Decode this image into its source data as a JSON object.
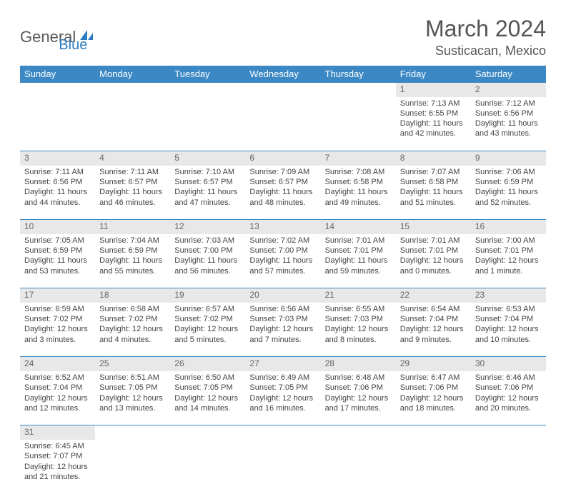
{
  "logo": {
    "text1": "General",
    "text2": "Blue"
  },
  "title": "March 2024",
  "location": "Susticacan, Mexico",
  "colors": {
    "header_bg": "#3b88c4",
    "header_text": "#ffffff",
    "daynum_bg": "#e8e8e8",
    "daynum_text": "#666666",
    "row_border": "#3b88c4",
    "body_text": "#444444",
    "logo_gray": "#5a5a5a",
    "logo_blue": "#2d7bc0",
    "title_text": "#555555"
  },
  "weekdays": [
    "Sunday",
    "Monday",
    "Tuesday",
    "Wednesday",
    "Thursday",
    "Friday",
    "Saturday"
  ],
  "weeks": [
    [
      null,
      null,
      null,
      null,
      null,
      {
        "day": "1",
        "sunrise": "Sunrise: 7:13 AM",
        "sunset": "Sunset: 6:55 PM",
        "daylight": "Daylight: 11 hours and 42 minutes."
      },
      {
        "day": "2",
        "sunrise": "Sunrise: 7:12 AM",
        "sunset": "Sunset: 6:56 PM",
        "daylight": "Daylight: 11 hours and 43 minutes."
      }
    ],
    [
      {
        "day": "3",
        "sunrise": "Sunrise: 7:11 AM",
        "sunset": "Sunset: 6:56 PM",
        "daylight": "Daylight: 11 hours and 44 minutes."
      },
      {
        "day": "4",
        "sunrise": "Sunrise: 7:11 AM",
        "sunset": "Sunset: 6:57 PM",
        "daylight": "Daylight: 11 hours and 46 minutes."
      },
      {
        "day": "5",
        "sunrise": "Sunrise: 7:10 AM",
        "sunset": "Sunset: 6:57 PM",
        "daylight": "Daylight: 11 hours and 47 minutes."
      },
      {
        "day": "6",
        "sunrise": "Sunrise: 7:09 AM",
        "sunset": "Sunset: 6:57 PM",
        "daylight": "Daylight: 11 hours and 48 minutes."
      },
      {
        "day": "7",
        "sunrise": "Sunrise: 7:08 AM",
        "sunset": "Sunset: 6:58 PM",
        "daylight": "Daylight: 11 hours and 49 minutes."
      },
      {
        "day": "8",
        "sunrise": "Sunrise: 7:07 AM",
        "sunset": "Sunset: 6:58 PM",
        "daylight": "Daylight: 11 hours and 51 minutes."
      },
      {
        "day": "9",
        "sunrise": "Sunrise: 7:06 AM",
        "sunset": "Sunset: 6:59 PM",
        "daylight": "Daylight: 11 hours and 52 minutes."
      }
    ],
    [
      {
        "day": "10",
        "sunrise": "Sunrise: 7:05 AM",
        "sunset": "Sunset: 6:59 PM",
        "daylight": "Daylight: 11 hours and 53 minutes."
      },
      {
        "day": "11",
        "sunrise": "Sunrise: 7:04 AM",
        "sunset": "Sunset: 6:59 PM",
        "daylight": "Daylight: 11 hours and 55 minutes."
      },
      {
        "day": "12",
        "sunrise": "Sunrise: 7:03 AM",
        "sunset": "Sunset: 7:00 PM",
        "daylight": "Daylight: 11 hours and 56 minutes."
      },
      {
        "day": "13",
        "sunrise": "Sunrise: 7:02 AM",
        "sunset": "Sunset: 7:00 PM",
        "daylight": "Daylight: 11 hours and 57 minutes."
      },
      {
        "day": "14",
        "sunrise": "Sunrise: 7:01 AM",
        "sunset": "Sunset: 7:01 PM",
        "daylight": "Daylight: 11 hours and 59 minutes."
      },
      {
        "day": "15",
        "sunrise": "Sunrise: 7:01 AM",
        "sunset": "Sunset: 7:01 PM",
        "daylight": "Daylight: 12 hours and 0 minutes."
      },
      {
        "day": "16",
        "sunrise": "Sunrise: 7:00 AM",
        "sunset": "Sunset: 7:01 PM",
        "daylight": "Daylight: 12 hours and 1 minute."
      }
    ],
    [
      {
        "day": "17",
        "sunrise": "Sunrise: 6:59 AM",
        "sunset": "Sunset: 7:02 PM",
        "daylight": "Daylight: 12 hours and 3 minutes."
      },
      {
        "day": "18",
        "sunrise": "Sunrise: 6:58 AM",
        "sunset": "Sunset: 7:02 PM",
        "daylight": "Daylight: 12 hours and 4 minutes."
      },
      {
        "day": "19",
        "sunrise": "Sunrise: 6:57 AM",
        "sunset": "Sunset: 7:02 PM",
        "daylight": "Daylight: 12 hours and 5 minutes."
      },
      {
        "day": "20",
        "sunrise": "Sunrise: 6:56 AM",
        "sunset": "Sunset: 7:03 PM",
        "daylight": "Daylight: 12 hours and 7 minutes."
      },
      {
        "day": "21",
        "sunrise": "Sunrise: 6:55 AM",
        "sunset": "Sunset: 7:03 PM",
        "daylight": "Daylight: 12 hours and 8 minutes."
      },
      {
        "day": "22",
        "sunrise": "Sunrise: 6:54 AM",
        "sunset": "Sunset: 7:04 PM",
        "daylight": "Daylight: 12 hours and 9 minutes."
      },
      {
        "day": "23",
        "sunrise": "Sunrise: 6:53 AM",
        "sunset": "Sunset: 7:04 PM",
        "daylight": "Daylight: 12 hours and 10 minutes."
      }
    ],
    [
      {
        "day": "24",
        "sunrise": "Sunrise: 6:52 AM",
        "sunset": "Sunset: 7:04 PM",
        "daylight": "Daylight: 12 hours and 12 minutes."
      },
      {
        "day": "25",
        "sunrise": "Sunrise: 6:51 AM",
        "sunset": "Sunset: 7:05 PM",
        "daylight": "Daylight: 12 hours and 13 minutes."
      },
      {
        "day": "26",
        "sunrise": "Sunrise: 6:50 AM",
        "sunset": "Sunset: 7:05 PM",
        "daylight": "Daylight: 12 hours and 14 minutes."
      },
      {
        "day": "27",
        "sunrise": "Sunrise: 6:49 AM",
        "sunset": "Sunset: 7:05 PM",
        "daylight": "Daylight: 12 hours and 16 minutes."
      },
      {
        "day": "28",
        "sunrise": "Sunrise: 6:48 AM",
        "sunset": "Sunset: 7:06 PM",
        "daylight": "Daylight: 12 hours and 17 minutes."
      },
      {
        "day": "29",
        "sunrise": "Sunrise: 6:47 AM",
        "sunset": "Sunset: 7:06 PM",
        "daylight": "Daylight: 12 hours and 18 minutes."
      },
      {
        "day": "30",
        "sunrise": "Sunrise: 6:46 AM",
        "sunset": "Sunset: 7:06 PM",
        "daylight": "Daylight: 12 hours and 20 minutes."
      }
    ],
    [
      {
        "day": "31",
        "sunrise": "Sunrise: 6:45 AM",
        "sunset": "Sunset: 7:07 PM",
        "daylight": "Daylight: 12 hours and 21 minutes."
      },
      null,
      null,
      null,
      null,
      null,
      null
    ]
  ]
}
